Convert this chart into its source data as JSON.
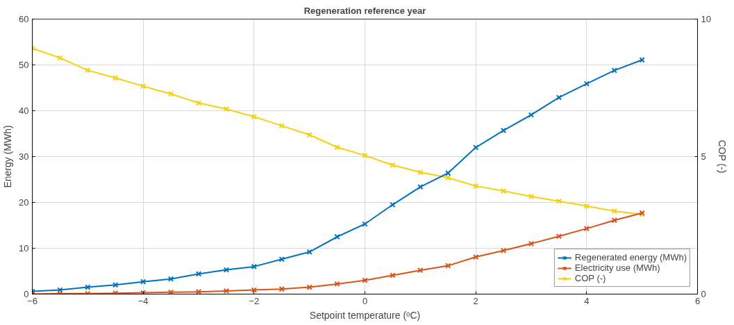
{
  "chart_data": {
    "type": "line",
    "title": "Regeneration reference year",
    "xlabel": "Setpoint temperature (ᵒC)",
    "ylabel": "Energy (MWh)",
    "y2label": "COP (-)",
    "x": [
      -6,
      -5.5,
      -5,
      -4.5,
      -4,
      -3.5,
      -3,
      -2.5,
      -2,
      -1.5,
      -1,
      -0.5,
      0,
      0.5,
      1,
      1.5,
      2,
      2.5,
      3,
      3.5,
      4,
      4.5,
      5
    ],
    "series": [
      {
        "name": "Regenerated energy (MWh)",
        "color": "#0072bd",
        "values": [
          0.6,
          0.9,
          1.5,
          2.0,
          2.7,
          3.3,
          4.4,
          5.3,
          6.0,
          7.6,
          9.2,
          12.5,
          15.3,
          19.5,
          23.4,
          26.4,
          32.0,
          35.7,
          39.1,
          42.9,
          45.9,
          48.8,
          51.1
        ]
      },
      {
        "name": "Electricity use (MWh)",
        "color": "#d95319",
        "values": [
          0,
          0.1,
          0.1,
          0.2,
          0.3,
          0.4,
          0.5,
          0.7,
          0.9,
          1.1,
          1.5,
          2.2,
          3.0,
          4.1,
          5.2,
          6.2,
          8.1,
          9.5,
          11.0,
          12.6,
          14.3,
          16.1,
          17.7
        ]
      },
      {
        "name": "COP (-)",
        "color": "#f5d010",
        "axis": "y2",
        "values": [
          8.94,
          8.59,
          8.14,
          7.86,
          7.56,
          7.28,
          6.95,
          6.73,
          6.45,
          6.12,
          5.79,
          5.34,
          5.04,
          4.69,
          4.43,
          4.23,
          3.93,
          3.75,
          3.55,
          3.38,
          3.2,
          3.02,
          2.9
        ]
      }
    ],
    "xlim": [
      -6,
      6
    ],
    "xticks": [
      -6,
      -4,
      -2,
      0,
      2,
      4,
      6
    ],
    "ylim": [
      0,
      60
    ],
    "yticks": [
      0,
      10,
      20,
      30,
      40,
      50,
      60
    ],
    "y2lim": [
      0,
      10
    ],
    "y2ticks": [
      0,
      5,
      10
    ],
    "grid": true,
    "legend": "bottom right",
    "marker": "cross",
    "line_style": "solid"
  }
}
